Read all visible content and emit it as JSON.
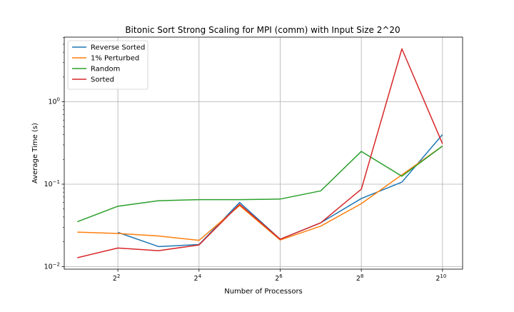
{
  "chart_data": {
    "type": "line",
    "title": "Bitonic Sort Strong Scaling for MPI (comm) with Input Size 2^20",
    "xlabel": "Number of Processors",
    "ylabel": "Average Time (s)",
    "x_scale": "log2",
    "y_scale": "log10",
    "xlim": [
      1.6,
      1444
    ],
    "ylim": [
      0.0093,
      6.1
    ],
    "x_ticks": [
      {
        "value": 4,
        "base": "2",
        "exp": "2"
      },
      {
        "value": 16,
        "base": "2",
        "exp": "4"
      },
      {
        "value": 64,
        "base": "2",
        "exp": "6"
      },
      {
        "value": 256,
        "base": "2",
        "exp": "8"
      },
      {
        "value": 1024,
        "base": "2",
        "exp": "10"
      }
    ],
    "y_ticks": [
      {
        "value": 0.01,
        "base": "10",
        "exp": "−2"
      },
      {
        "value": 0.1,
        "base": "10",
        "exp": "−1"
      },
      {
        "value": 1,
        "base": "10",
        "exp": "0"
      }
    ],
    "grid": true,
    "legend_position": "top-left",
    "series": [
      {
        "name": "Reverse Sorted",
        "color": "#1f77b4",
        "x": [
          4,
          8,
          16,
          32,
          64,
          128,
          256,
          512,
          1024
        ],
        "y": [
          0.026,
          0.0175,
          0.0185,
          0.06,
          0.0215,
          0.034,
          0.067,
          0.106,
          0.4
        ]
      },
      {
        "name": "1% Perturbed",
        "color": "#ff7f0e",
        "x": [
          2,
          4,
          8,
          16,
          32,
          64,
          128,
          256,
          512,
          1024
        ],
        "y": [
          0.0262,
          0.0252,
          0.0235,
          0.0208,
          0.055,
          0.021,
          0.031,
          0.058,
          0.13,
          0.29
        ]
      },
      {
        "name": "Random",
        "color": "#2ca02c",
        "x": [
          2,
          4,
          8,
          16,
          32,
          64,
          128,
          256,
          512,
          1024
        ],
        "y": [
          0.035,
          0.054,
          0.063,
          0.065,
          0.065,
          0.066,
          0.083,
          0.25,
          0.125,
          0.29
        ]
      },
      {
        "name": "Sorted",
        "color": "#d62728",
        "x": [
          2,
          4,
          8,
          16,
          32,
          64,
          128,
          256,
          512,
          1024
        ],
        "y": [
          0.0128,
          0.0168,
          0.0156,
          0.0183,
          0.057,
          0.0215,
          0.034,
          0.087,
          4.4,
          0.31
        ]
      }
    ]
  }
}
